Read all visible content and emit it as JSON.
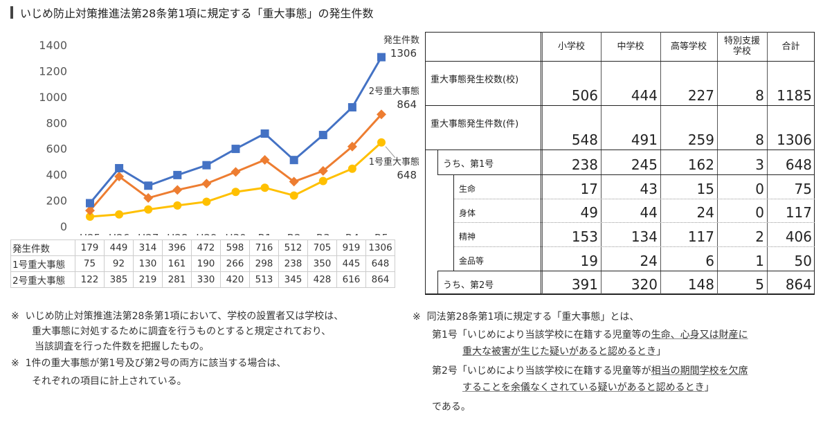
{
  "title": "いじめ防止対策推進法第28条第1項に規定する「重大事態」の発生件数",
  "chart_data": {
    "type": "line",
    "categories": [
      "H25",
      "H26",
      "H27",
      "H28",
      "H29",
      "H30",
      "R1",
      "R2",
      "R3",
      "R4",
      "R5"
    ],
    "ylim": [
      0,
      1400
    ],
    "yticks": [
      0,
      200,
      400,
      600,
      800,
      1000,
      1200,
      1400
    ],
    "grid": false,
    "series": [
      {
        "name": "発生件数",
        "color": "#4472C4",
        "marker": "square",
        "values": [
          179,
          449,
          314,
          396,
          472,
          598,
          716,
          512,
          705,
          919,
          1306
        ],
        "end_label": "1306"
      },
      {
        "name": "1号重大事態",
        "color": "#FFC000",
        "marker": "circle",
        "values": [
          75,
          92,
          130,
          161,
          190,
          266,
          298,
          238,
          350,
          445,
          648
        ],
        "end_label": "648"
      },
      {
        "name": "2号重大事態",
        "color": "#ED7D31",
        "marker": "diamond",
        "values": [
          122,
          385,
          219,
          281,
          330,
          420,
          513,
          345,
          428,
          616,
          864
        ],
        "end_label": "864"
      }
    ]
  },
  "table": {
    "headers": [
      "小学校",
      "中学校",
      "高等学校",
      "特別支援\n学校",
      "合計"
    ],
    "rows": [
      {
        "label": "重大事態発生校数(校)",
        "values": [
          "506",
          "444",
          "227",
          "8",
          "1185"
        ]
      },
      {
        "label": "重大事態発生件数(件)",
        "values": [
          "548",
          "491",
          "259",
          "8",
          "1306"
        ]
      },
      {
        "label": "うち、第1号",
        "values": [
          "238",
          "245",
          "162",
          "3",
          "648"
        ]
      },
      {
        "label": "生命",
        "values": [
          "17",
          "43",
          "15",
          "0",
          "75"
        ]
      },
      {
        "label": "身体",
        "values": [
          "49",
          "44",
          "24",
          "0",
          "117"
        ]
      },
      {
        "label": "精神",
        "values": [
          "153",
          "134",
          "117",
          "2",
          "406"
        ]
      },
      {
        "label": "金品等",
        "values": [
          "19",
          "24",
          "6",
          "1",
          "50"
        ]
      },
      {
        "label": "うち、第2号",
        "values": [
          "391",
          "320",
          "148",
          "5",
          "864"
        ]
      }
    ]
  },
  "notes": {
    "left1": {
      "mark": "※",
      "l1": "いじめ防止対策推進法第28条第1項において、学校の設置者又は学校は、",
      "l2": "重大事態に対処するために調査を行うものとすると規定されており、",
      "l3": "当該調査を行った件数を把握したもの。"
    },
    "left2": {
      "mark": "※",
      "l1": "1件の重大事態が第1号及び第2号の両方に該当する場合は、",
      "l2": "それぞれの項目に計上されている。"
    },
    "right": {
      "mark": "※",
      "intro": "同法第28条第1項に規定する「重大事態」とは、",
      "item1_a": "第1号「いじめにより当該学校に在籍する児童等の",
      "item1_u": "生命、心身又は財産に",
      "item1_l2u": "重大な被害が生じた疑いがあると認めるとき",
      "item1_end": "」",
      "item2_a": "第2号「いじめにより当該学校に在籍する児童等が",
      "item2_u": "相当の期間学校を欠席",
      "item2_l2u": "することを余儀なくされている疑いがあると認めるとき",
      "item2_end": "」",
      "outro": "である。"
    }
  }
}
